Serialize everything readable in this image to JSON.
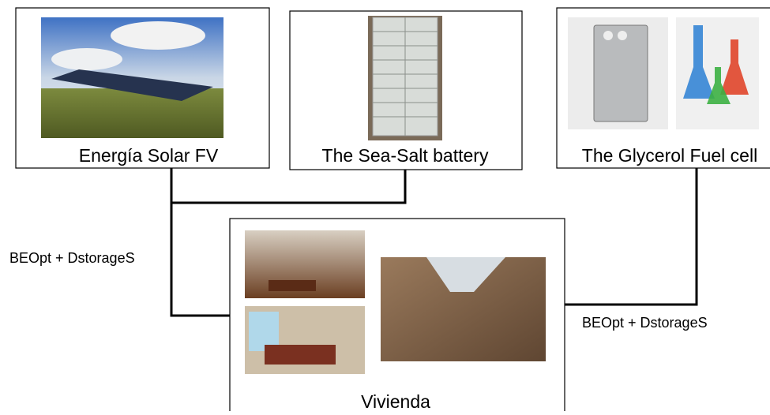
{
  "nodes": [
    {
      "label": "Energía Solar FV"
    },
    {
      "label": "The Sea-Salt battery"
    },
    {
      "label": "The Glycerol Fuel cell"
    },
    {
      "label": "Vivienda"
    }
  ],
  "edges": [
    {
      "label": "BEOpt + DstorageS"
    },
    {
      "label": "BEOpt + DstorageS"
    }
  ]
}
